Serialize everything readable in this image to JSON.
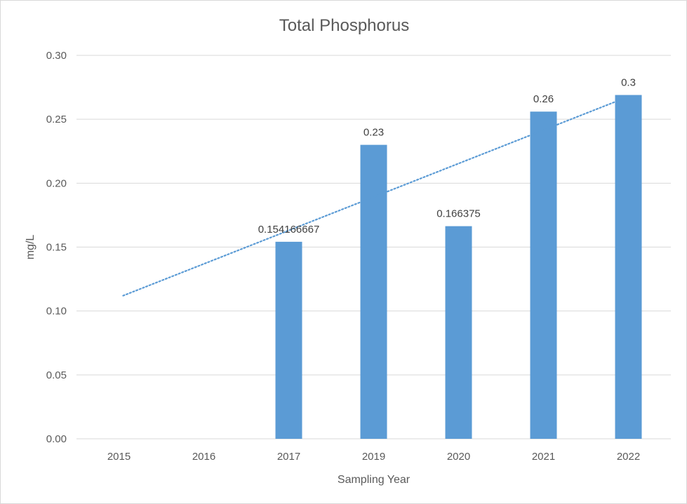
{
  "chart_data": {
    "type": "bar",
    "title": "Total Phosphorus",
    "xlabel": "Sampling Year",
    "ylabel": "mg/L",
    "categories": [
      "2015",
      "2016",
      "2017",
      "2019",
      "2020",
      "2021",
      "2022"
    ],
    "values": [
      null,
      null,
      0.154166667,
      0.23,
      0.166375,
      0.256,
      0.269
    ],
    "data_labels": [
      null,
      null,
      "0.154166667",
      "0.23",
      "0.166375",
      "0.26",
      "0.3"
    ],
    "ylim": [
      0,
      0.3
    ],
    "yticks": [
      "0.00",
      "0.05",
      "0.10",
      "0.15",
      "0.20",
      "0.25",
      "0.30"
    ],
    "grid": true,
    "bar_color": "#5b9bd5",
    "trendline": {
      "type": "linear",
      "style": "dotted",
      "color": "#5b9bd5",
      "start": {
        "category": "2015",
        "value": 0.112
      },
      "end": {
        "category": "2022",
        "value": 0.266
      }
    }
  }
}
